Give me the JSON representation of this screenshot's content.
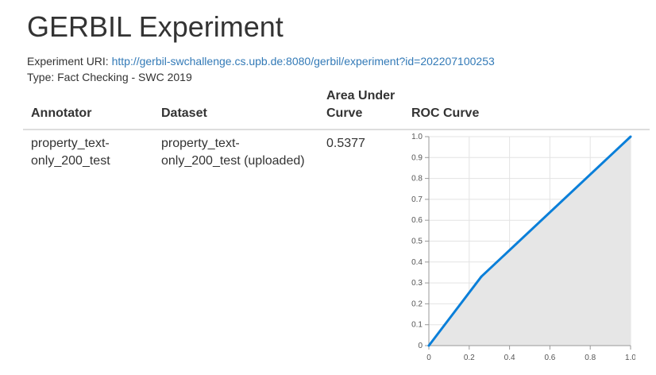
{
  "page": {
    "title": "GERBIL Experiment",
    "uri_label": "Experiment URI: ",
    "uri_link": "http://gerbil-swchallenge.cs.upb.de:8080/gerbil/experiment?id=202207100253",
    "type_line": "Type: Fact Checking - SWC 2019"
  },
  "table": {
    "headers": {
      "annotator": "Annotator",
      "dataset": "Dataset",
      "auc_line1": "Area Under",
      "auc_line2": "Curve",
      "roc": "ROC Curve"
    },
    "rows": [
      {
        "annotator": "property_text-only_200_test",
        "dataset": "property_text-only_200_test (uploaded)",
        "auc": "0.5377"
      }
    ]
  },
  "chart_data": {
    "type": "line",
    "x": [
      0,
      0.26,
      1.0
    ],
    "y": [
      0,
      0.33,
      1.0
    ],
    "xlim": [
      0,
      1
    ],
    "ylim": [
      0,
      1
    ],
    "xticks": [
      "0",
      "0.2",
      "0.4",
      "0.6",
      "0.8",
      "1.0"
    ],
    "yticks": [
      "0",
      "0.1",
      "0.2",
      "0.3",
      "0.4",
      "0.5",
      "0.6",
      "0.7",
      "0.8",
      "0.9",
      "1.0"
    ],
    "grid": true,
    "line_color": "#0a7fd9",
    "area_color": "#e6e6e6",
    "title": "",
    "xlabel": "",
    "ylabel": ""
  }
}
